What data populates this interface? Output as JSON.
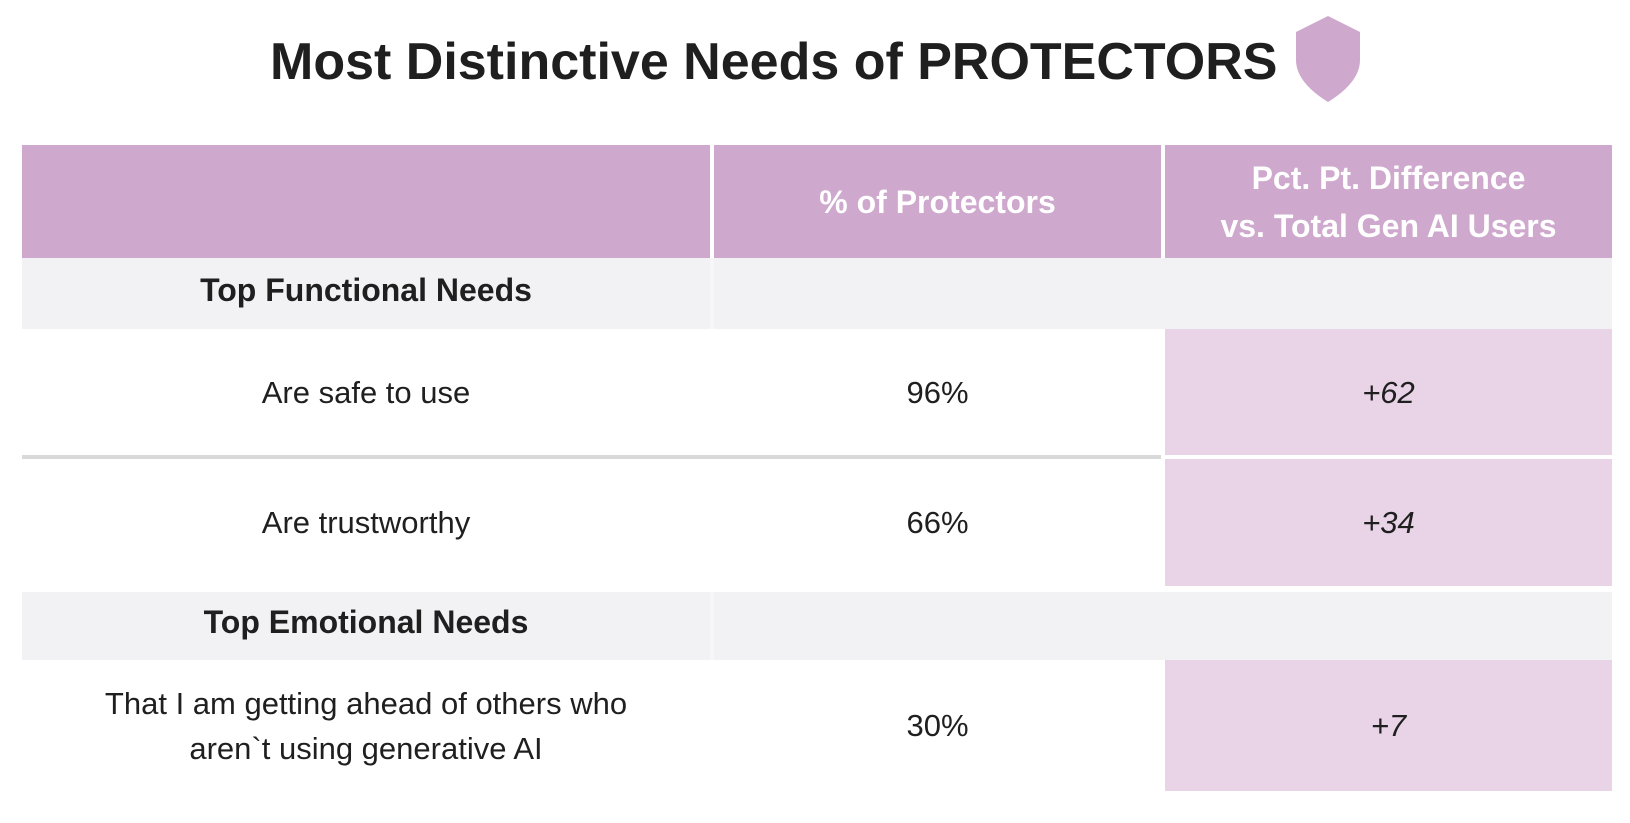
{
  "title": "Most Distinctive Needs of PROTECTORS",
  "icon": "shield-icon",
  "colors": {
    "header_bg": "#cea8cd",
    "highlight_bg": "#e8d3e7",
    "section_bg": "#f2f2f4",
    "shield": "#cea8cd"
  },
  "chart_data": {
    "type": "table",
    "title": "Most Distinctive Needs of PROTECTORS",
    "columns": [
      "",
      "% of Protectors",
      "Pct. Pt. Difference vs. Total Gen AI Users"
    ],
    "header": {
      "col1": "",
      "col2": "% of Protectors",
      "col3_line1": "Pct. Pt. Difference",
      "col3_line2": "vs. Total Gen AI Users"
    },
    "sections": [
      {
        "label": "Top Functional Needs",
        "rows": [
          {
            "need": "Are safe to use",
            "pct": "96%",
            "diff": "+62"
          },
          {
            "need": "Are trustworthy",
            "pct": "66%",
            "diff": "+34"
          }
        ]
      },
      {
        "label": "Top Emotional Needs",
        "rows": [
          {
            "need_line1": "That I am getting ahead of others who",
            "need_line2": "aren`t using generative AI",
            "pct": "30%",
            "diff": "+7"
          }
        ]
      }
    ]
  }
}
